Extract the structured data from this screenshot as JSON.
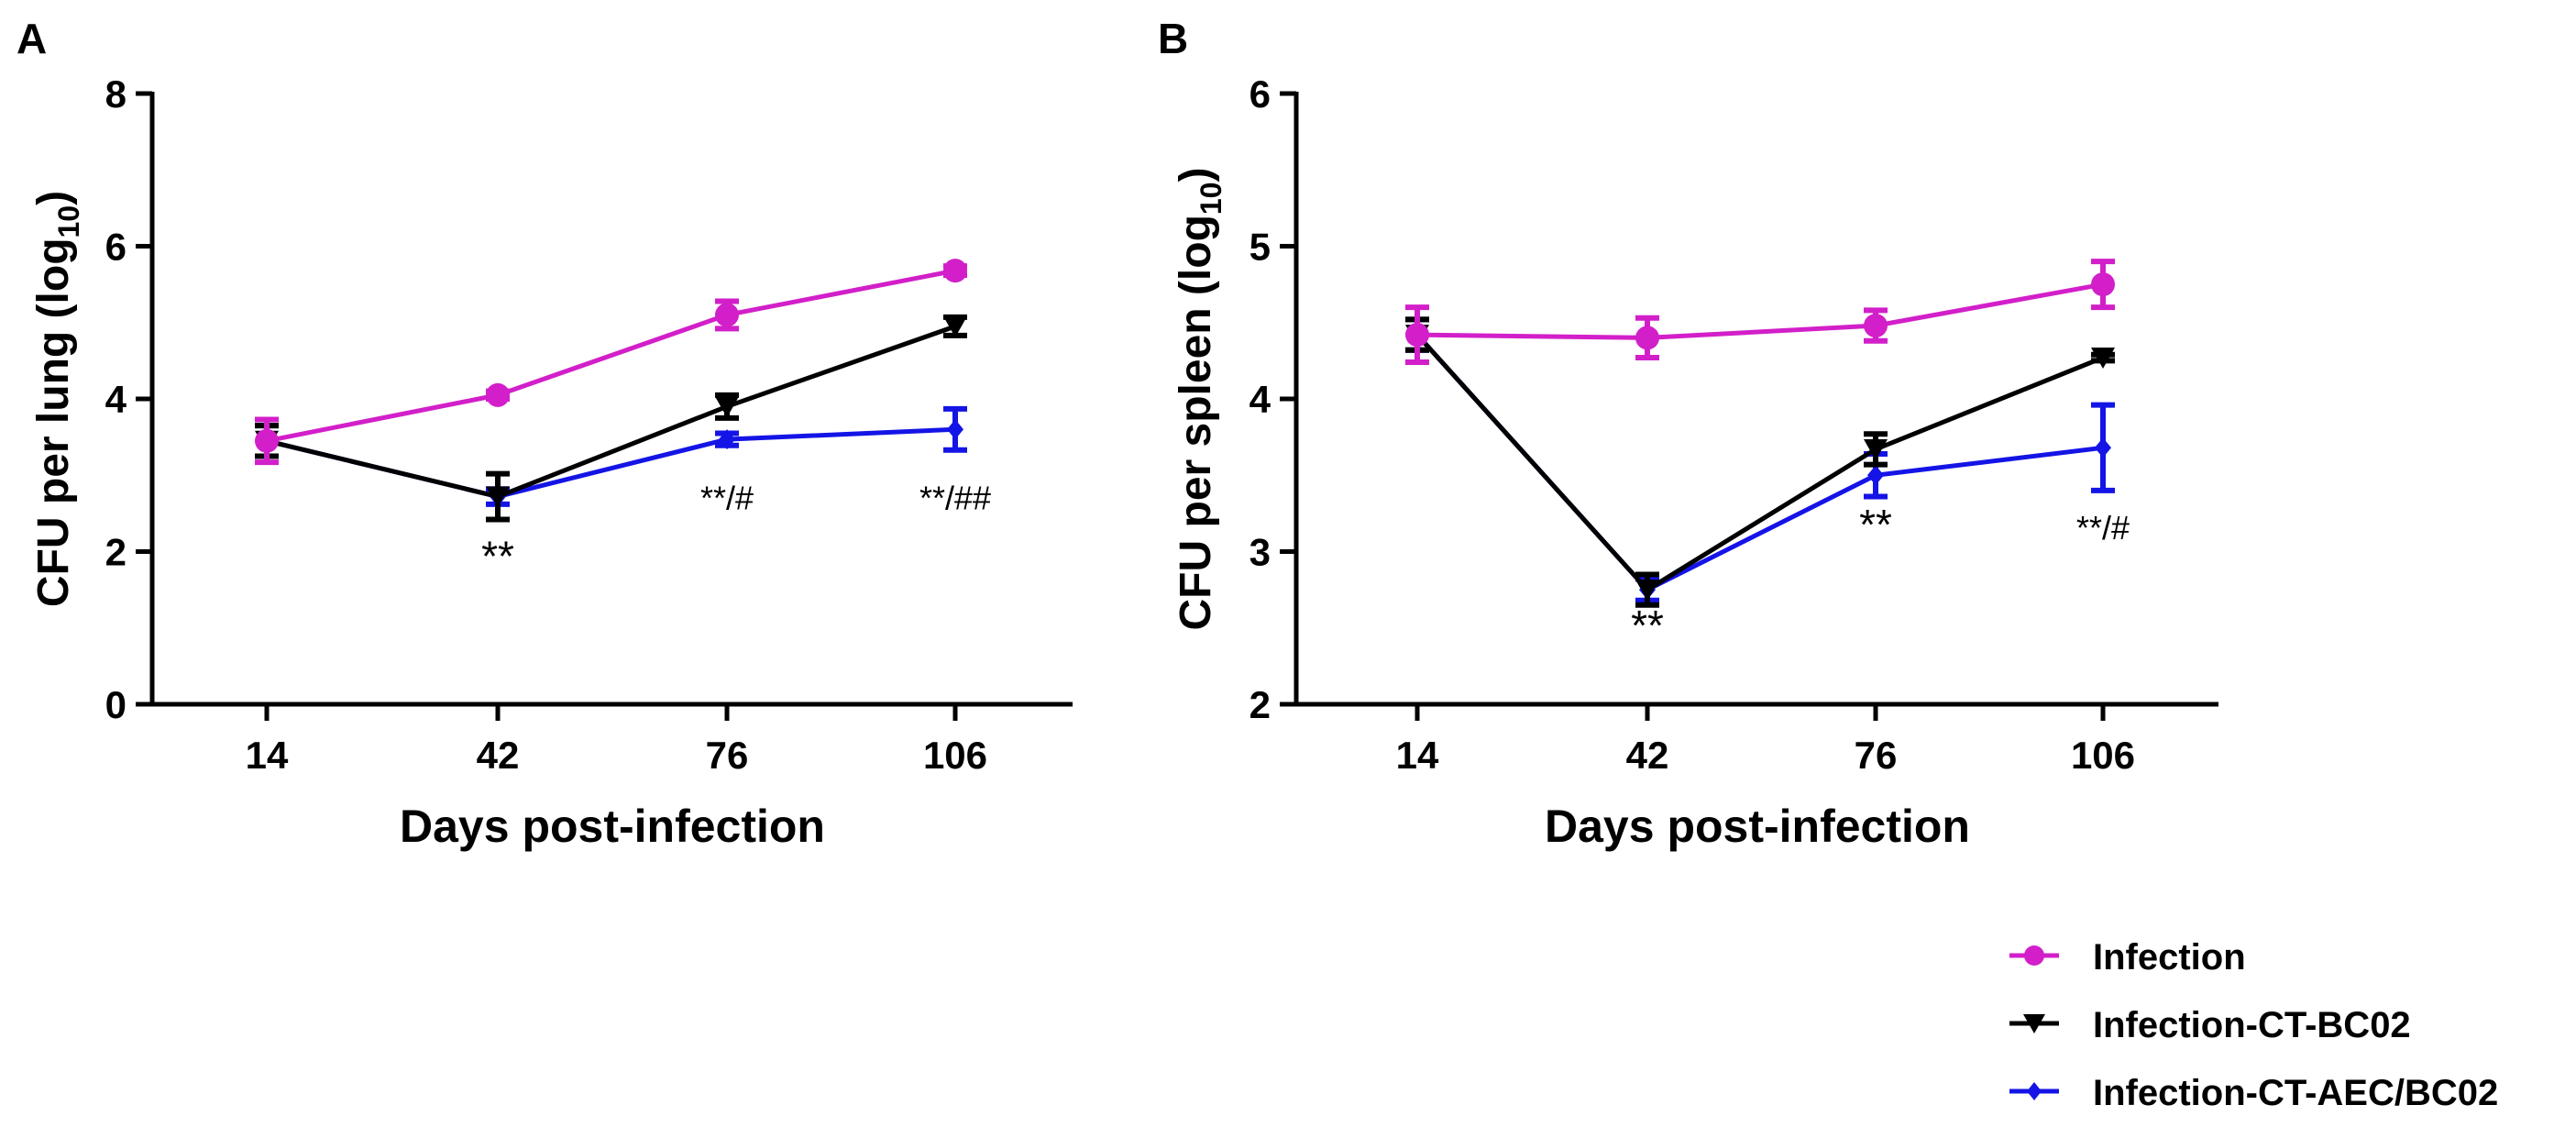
{
  "chart_data": [
    {
      "panel_label": "A",
      "type": "line",
      "title": "",
      "xlabel": "Days post-infection",
      "ylabel_main": "CFU per lung (log",
      "ylabel_sub": "10",
      "ylabel_end": ")",
      "categories": [
        "14",
        "42",
        "76",
        "106"
      ],
      "ylim": [
        0,
        8
      ],
      "yticks": [
        "0",
        "2",
        "4",
        "6",
        "8"
      ],
      "grid": false,
      "series": [
        {
          "name": "Infection",
          "color": "#d21fc9",
          "marker": "circle",
          "values": [
            3.45,
            4.05,
            5.1,
            5.68
          ],
          "errors": [
            0.28,
            0.05,
            0.18,
            0.06
          ]
        },
        {
          "name": "Infection-CT-BC02",
          "color": "#000000",
          "marker": "triangle-down",
          "values": [
            3.45,
            2.72,
            3.9,
            4.95
          ],
          "errors": [
            0.2,
            0.3,
            0.15,
            0.12
          ]
        },
        {
          "name": "Infection-CT-AEC/BC02",
          "color": "#1414e6",
          "marker": "diamond",
          "values": [
            3.45,
            2.72,
            3.47,
            3.6
          ],
          "errors": [
            0.2,
            0.1,
            0.08,
            0.27
          ]
        }
      ],
      "annotations": [
        {
          "text": "**",
          "category": "42",
          "y": 1.75,
          "size": "large"
        },
        {
          "text": "**/#",
          "category": "76",
          "y": 2.55,
          "size": "small"
        },
        {
          "text": "**/##",
          "category": "106",
          "y": 2.55,
          "size": "small"
        }
      ]
    },
    {
      "panel_label": "B",
      "type": "line",
      "title": "",
      "xlabel": "Days post-infection",
      "ylabel_main": "CFU per spleen (log",
      "ylabel_sub": "10",
      "ylabel_end": ")",
      "categories": [
        "14",
        "42",
        "76",
        "106"
      ],
      "ylim": [
        2,
        6
      ],
      "yticks": [
        "2",
        "3",
        "4",
        "5",
        "6"
      ],
      "grid": false,
      "series": [
        {
          "name": "Infection",
          "color": "#d21fc9",
          "marker": "circle",
          "values": [
            4.42,
            4.4,
            4.48,
            4.75
          ],
          "errors": [
            0.18,
            0.13,
            0.1,
            0.15
          ]
        },
        {
          "name": "Infection-CT-BC02",
          "color": "#000000",
          "marker": "triangle-down",
          "values": [
            4.42,
            2.75,
            3.67,
            4.27
          ],
          "errors": [
            0.1,
            0.1,
            0.1,
            0.02
          ]
        },
        {
          "name": "Infection-CT-AEC/BC02",
          "color": "#1414e6",
          "marker": "diamond",
          "values": [
            4.42,
            2.75,
            3.5,
            3.68
          ],
          "errors": [
            0.1,
            0.07,
            0.14,
            0.28
          ]
        }
      ],
      "annotations": [
        {
          "text": "**",
          "category": "42",
          "y": 2.42,
          "size": "large"
        },
        {
          "text": "**",
          "category": "76",
          "y": 3.08,
          "size": "large"
        },
        {
          "text": "**/#",
          "category": "106",
          "y": 3.08,
          "size": "small"
        }
      ]
    }
  ],
  "legend": {
    "placement": "bottom-right",
    "entries": [
      {
        "name": "Infection",
        "color": "#d21fc9",
        "marker": "circle"
      },
      {
        "name": "Infection-CT-BC02",
        "color": "#000000",
        "marker": "triangle-down"
      },
      {
        "name": "Infection-CT-AEC/BC02",
        "color": "#1414e6",
        "marker": "diamond"
      }
    ]
  }
}
